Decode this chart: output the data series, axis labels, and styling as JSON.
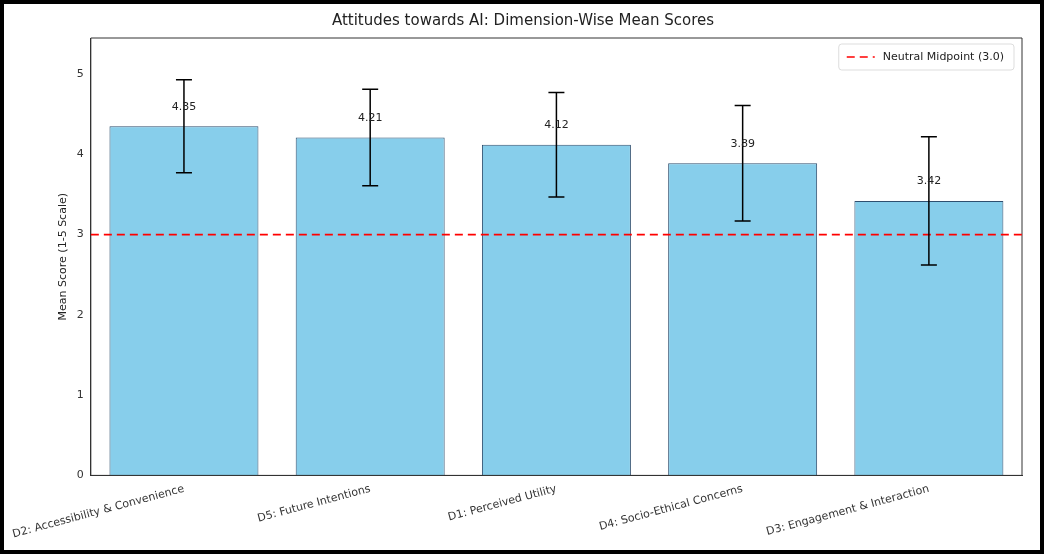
{
  "chart_data": {
    "type": "bar",
    "title": "Attitudes towards AI: Dimension-Wise Mean Scores",
    "ylabel": "Mean Score (1-5 Scale)",
    "categories": [
      "D2: Accessibility & Convenience",
      "D5: Future Intentions",
      "D1: Perceived Utility",
      "D4: Socio-Ethical Concerns",
      "D3: Engagement & Interaction"
    ],
    "values": [
      4.35,
      4.21,
      4.12,
      3.89,
      3.42
    ],
    "errors": [
      0.58,
      0.6,
      0.65,
      0.72,
      0.8
    ],
    "color": "#87ceeb",
    "data_labels": true,
    "ylim": [
      0,
      5.45
    ],
    "yticks": [
      0,
      1,
      2,
      3,
      4,
      5
    ],
    "grid": false,
    "legend": "top right",
    "ref_lines": [
      {
        "axis": "y",
        "value": 3,
        "label": "Neutral Midpoint (3.0)",
        "color": "#ff0000",
        "line_style": "dashed"
      }
    ]
  }
}
